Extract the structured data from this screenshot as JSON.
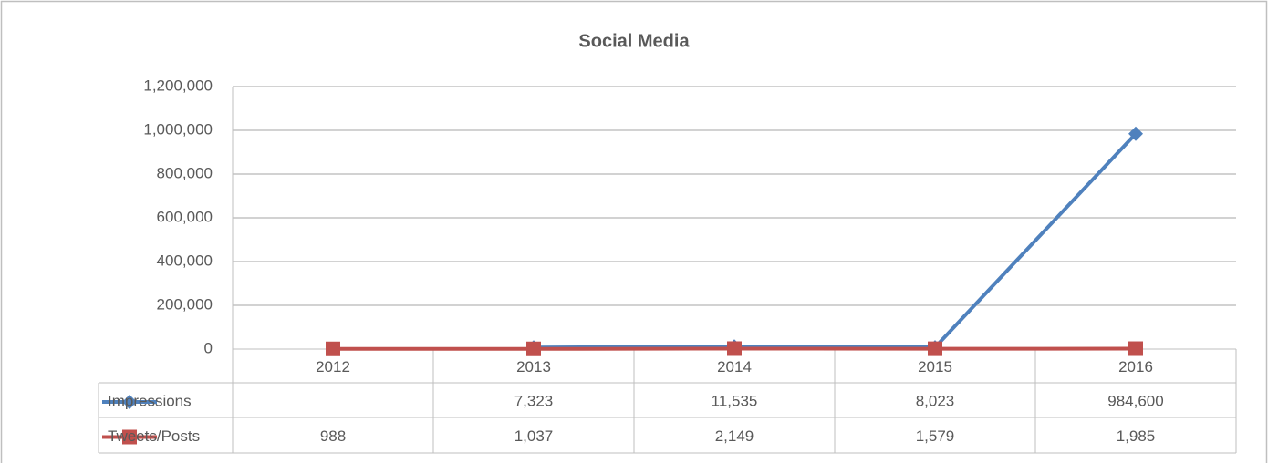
{
  "chart_data": {
    "type": "line",
    "title": "Social Media",
    "categories": [
      "2012",
      "2013",
      "2014",
      "2015",
      "2016"
    ],
    "series": [
      {
        "name": "Impressions",
        "color": "#4f81bd",
        "values": [
          null,
          7323,
          11535,
          8023,
          984600
        ],
        "value_labels": [
          null,
          "7,323",
          "11,535",
          "8,023",
          "984,600"
        ]
      },
      {
        "name": "Tweets/Posts",
        "color": "#c0504d",
        "values": [
          988,
          1037,
          2149,
          1579,
          1985
        ],
        "value_labels": [
          "988",
          "1,037",
          "2,149",
          "1,579",
          "1,985"
        ]
      }
    ],
    "ylim": [
      0,
      1200000
    ],
    "yticks": [
      0,
      {
        "value": 200000,
        "label": "200,000"
      },
      {
        "value": 400000,
        "label": "400,000"
      },
      {
        "value": 600000,
        "label": "600,000"
      },
      {
        "value": 800000,
        "label": "800,000"
      },
      {
        "value": 1000000,
        "label": "1,000,000"
      },
      {
        "value": 1200000,
        "label": "1,200,000"
      }
    ],
    "grid": true
  }
}
